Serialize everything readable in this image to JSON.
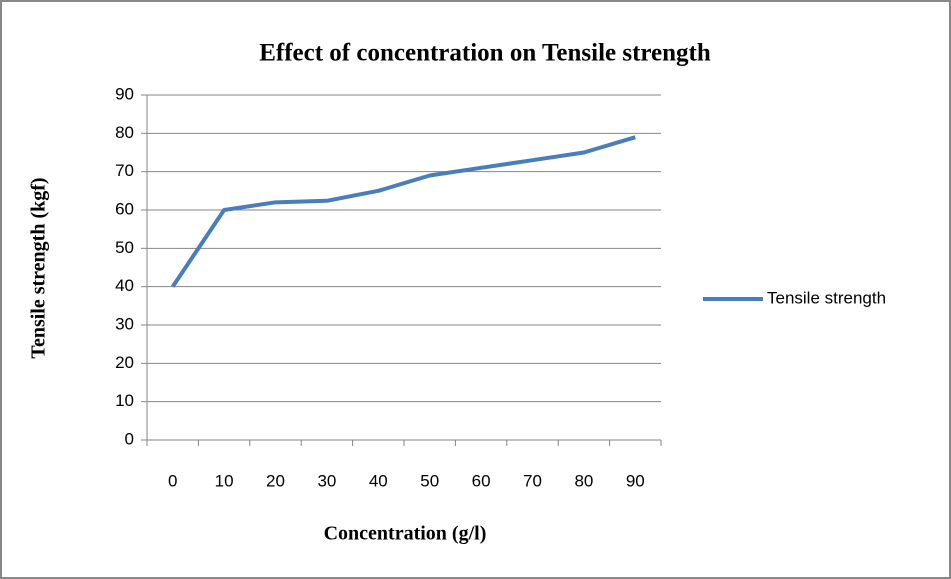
{
  "chart_data": {
    "type": "line",
    "title": "Effect of concentration on Tensile strength",
    "x_label": "Concentration (g/l)",
    "y_label": "Tensile strength (kgf)",
    "categories": [
      "0",
      "10",
      "20",
      "30",
      "40",
      "50",
      "60",
      "70",
      "80",
      "90"
    ],
    "series": [
      {
        "name": "Tensile strength",
        "color": "#4a7ebb",
        "values": [
          40,
          60,
          62,
          62.4,
          65,
          69,
          71,
          73,
          75,
          79
        ]
      }
    ],
    "ylim": [
      0,
      90
    ],
    "yticks": [
      0,
      10,
      20,
      30,
      40,
      50,
      60,
      70,
      80,
      90
    ],
    "grid": true,
    "legend": "right"
  }
}
